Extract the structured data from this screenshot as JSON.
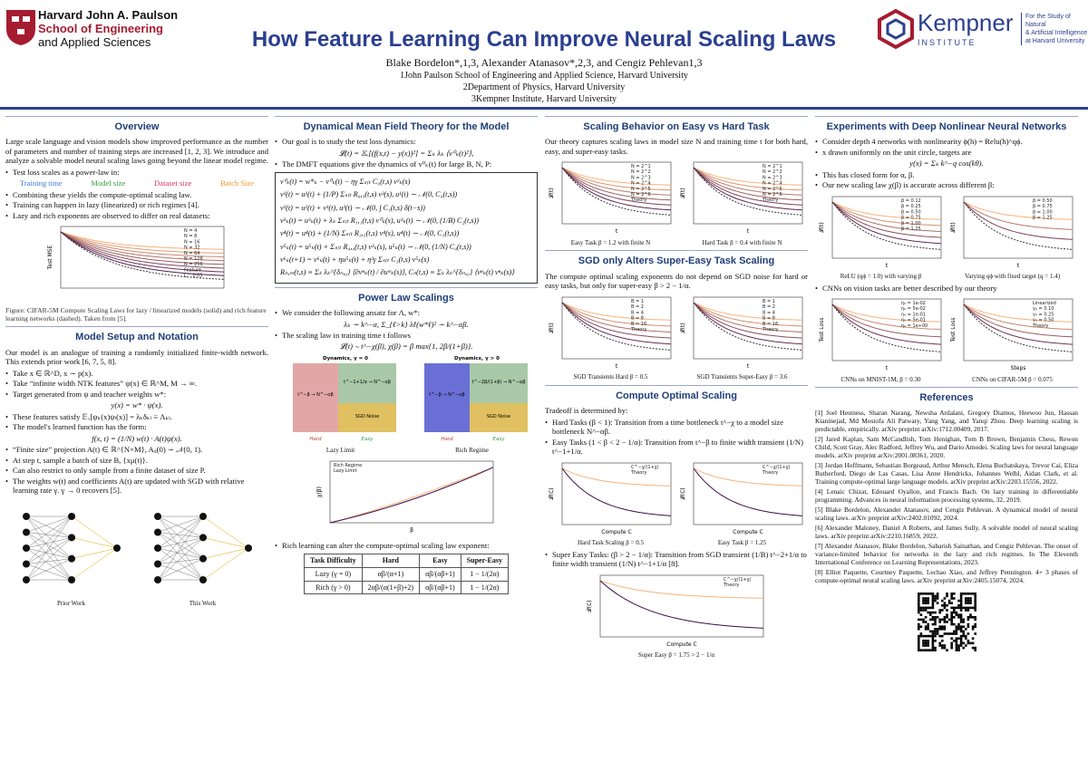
{
  "header": {
    "harvard": [
      "Harvard John A. Paulson",
      "School of Engineering",
      "and Applied Sciences"
    ],
    "kempner": {
      "name": "Kempner",
      "sub": "INSTITUTE",
      "tagline": [
        "For the Study of Natural",
        "& Artificial Intelligence",
        "at Harvard University"
      ]
    },
    "title": "How Feature Learning Can Improve Neural Scaling Laws",
    "authors": "Blake Bordelon*,1,3, Alexander Atanasov*,2,3, and Cengiz Pehlevan1,3",
    "affiliations": [
      "1John Paulson School of Engineering and Applied Science, Harvard University",
      "2Department of Physics, Harvard University",
      "3Kempner Institute, Harvard University"
    ]
  },
  "columns": [
    [
      {
        "title": "Overview",
        "body": [
          {
            "p": "Large scale language and vision models show improved performance as the number of parameters and number of training steps are increased [1, 2, 3]. We introduce and analyze a solvable model neural scaling laws going beyond the linear model regime."
          },
          {
            "li": "Test loss scales as a power-law in:"
          },
          {
            "terms": [
              {
                "text": "Training time",
                "color": "#3a7bd5"
              },
              {
                "text": "Model size",
                "color": "#2e9e3e"
              },
              {
                "text": "Dataset size",
                "color": "#d6336c"
              },
              {
                "text": "Batch Size",
                "color": "#f0932b"
              }
            ]
          },
          {
            "li": "Combining these yields the compute-optimal scaling law."
          },
          {
            "li": "Training can happen in lazy (linearized) or rich regimes [4]."
          },
          {
            "li": "Lazy and rich exponents are observed to differ on real datasets:"
          },
          {
            "fig": [
              {
                "legend": [
                  "N = 4",
                  "N = 8",
                  "N = 16",
                  "N = 32",
                  "N = 64",
                  "N = 128",
                  "N = 256",
                  "Feature",
                  "C^-0.05"
                ],
                "ylabel": "Test MSE",
                "xlabel": "",
                "caption": ""
              }
            ]
          },
          {
            "caption": "Figure: CIFAR-5M Compute Scaling Laws for lazy / linearized models (solid) and rich feature learning networks (dashed). Taken from [5]."
          }
        ]
      },
      {
        "title": "Model Setup and Notation",
        "body": [
          {
            "p": "Our model is an analogue of training a randomly initialized finite-width network. This extends prior work [6, 7, 5, 8]."
          },
          {
            "li": "Take x ∈ ℝ^D, x ∼ p(x)."
          },
          {
            "li": "Take “infinite width NTK features” ψ(x) ∈ ℝ^M, M → ∞."
          },
          {
            "li": "Target generated from ψ and teacher weights w*:"
          },
          {
            "eq": "y(x) = w* · ψ(x)."
          },
          {
            "li": "These features satisfy 𝔼ₓ[ψₖ(x)ψₗ(x)] = λₖδₖₗ ≡ Λₖₗ."
          },
          {
            "li": "The model's learned function has the form:"
          },
          {
            "eq": "f(x, t) = (1/N) w(t) · A(t)ψ(x)."
          },
          {
            "li": "“Finite size” projection A(t) ∈ ℝ^{N×M}, Aᵢⱼ(0) ∼ 𝒩(0, 1)."
          },
          {
            "li": "At step t, sample a batch of size B, {xμ(t)}."
          },
          {
            "li": "Can also restrict to only sample from a finite dataset of size P."
          },
          {
            "li": "The weights w(t) and coefficients A(t) are updated with SGD with relative learning rate γ. γ → 0 recovers [5]."
          },
          {
            "net": [
              "Prior Work",
              "This Work"
            ]
          }
        ]
      }
    ],
    [
      {
        "title": "Dynamical Mean Field Theory for the Model",
        "body": [
          {
            "li": "Our goal is to study the test loss dynamics:"
          },
          {
            "eq": "𝓛(t) = 𝔼ₓ[(f(x,t) − y(x))²] = Σₖ λₖ ⟨v⁰ₖ(t)²⟩,"
          },
          {
            "li": "The DMFT equations give the dynamics of v⁰ₖ(t) for large B, N, P:"
          },
          {
            "box": [
              "v⁰ₖ(t) = w*ₖ − v⁰ₖ(t) − ηγ Σₛ₍ₜ C₀(t,s) v²ₖ(s)",
              "v¹(t) = u¹(t) + (1/P) Σₛ₍ₜ R₀,₃(t,s) v³(s),  u¹(t) ∼ 𝒩(0, C₀(t,s))",
              "v²(t) = u²(t) + v¹(t),  u²(t) ∼ 𝒩(0, ∫ C₁(t,s) δ(t−s))",
              "v³ₖ(t) = u³ₖ(t) + λₖ Σₛ₍ₜ R₁,₁(t,s) v⁰ₖ(s),  u³ₖ(t) ∼ 𝒩(0, (1/B) C₂(t,s))",
              "v⁴(t) = u⁴(t) + (1/N) Σₛ₍ₜ R₃,₅(t,s) v⁴(s),  u⁴(t) ∼ 𝒩(0, C₃(t,s))",
              "v⁵ₖ(t) = u⁵ₖ(t) + Σₛ₍ₜ R₄,₄(t,s) v³ₖ(s),  u⁵ₖ(t) ∼ 𝒩(0, (1/N) C₄(t,s))",
              "v⁶ₖ(t+1) = v⁶ₖ(t) + ηu⁵ₖ(t) + η²γ Σₛ₍ₜ C₃(t,s) v⁵ₖ(s)",
              "Rₙ,ₘ(t,s) ≡ Σₖ λₖ^{δₙ,₀} ⟨∂vⁿₖ(t) / ∂uᵐₖ(s)⟩,  Cₙ(t,s) ≡ Σₖ λₖ^{δₙ,₀} ⟨vⁿₖ(t) vⁿₖ(s)⟩"
            ]
          }
        ]
      },
      {
        "title": "Power Law Scalings",
        "body": [
          {
            "li": "We consider the following ansatz for Λ, w*:"
          },
          {
            "eq": "λₖ ∼ k^−α,   Σ_{ℓ>k} λℓ(w*ℓ)² ∼ k^−αβ."
          },
          {
            "li": "The scaling law in training time t follows"
          },
          {
            "eq": "𝓛(t) ∼ t^−χ(β),  χ(β) = β max{1, 2β/(1+β)}."
          },
          {
            "phase": [
              {
                "title": "Dynamics, γ = 0",
                "caption": "Lazy Limit",
                "left": "t^−β → N^−αβ",
                "right": "t^−1+1/α → N^−αβ",
                "noise": "SGD Noise"
              },
              {
                "title": "Dynamics, γ > 0",
                "caption": "Rich Regime",
                "left": "t^−β → N^−αβ",
                "right": "t^−2β/(1+β) → N^−αβ",
                "noise": "SGD Noise"
              }
            ],
            "hard": "Hard",
            "easy": "Easy"
          },
          {
            "fig": [
              {
                "legend": [
                  "Rich Regime",
                  "Lazy Limit"
                ],
                "ylabel": "χ(β)",
                "xlabel": "β",
                "caption": "",
                "linear": true
              }
            ]
          },
          {
            "li": "Rich learning can alter the compute-optimal scaling law exponent:"
          },
          {
            "table": {
              "head": [
                "Task Difficulty",
                "Hard",
                "Easy",
                "Super-Easy"
              ],
              "rows": [
                [
                  "Lazy (γ = 0)",
                  "αβ/(α+1)",
                  "αβ/(αβ+1)",
                  "1 − 1/(2α)"
                ],
                [
                  "Rich (γ > 0)",
                  "2αβ/(α(1+β)+2)",
                  "αβ/(αβ+1)",
                  "1 − 1/(2α)"
                ]
              ]
            }
          }
        ]
      }
    ],
    [
      {
        "title": "Scaling Behavior on Easy vs Hard Task",
        "body": [
          {
            "p": "Our theory captures scaling laws in model size N and training time t for both hard, easy, and super-easy tasks."
          },
          {
            "fig": [
              {
                "legend": [
                  "N = 2^1",
                  "N = 2^2",
                  "N = 2^3",
                  "N = 2^4",
                  "N = 2^5",
                  "N = 2^6",
                  "Theory"
                ],
                "ylabel": "𝓛(t)",
                "xlabel": "t",
                "caption": "Easy Task β = 1.2 with finite N"
              },
              {
                "legend": [
                  "N = 2^1",
                  "N = 2^2",
                  "N = 2^3",
                  "N = 2^4",
                  "N = 2^5",
                  "N = 2^6",
                  "Theory"
                ],
                "ylabel": "𝓛(t)",
                "xlabel": "t",
                "caption": "Hard Task β = 0.4 with finite N"
              }
            ]
          }
        ]
      },
      {
        "title": "SGD only Alters Super-Easy Task Scaling",
        "body": [
          {
            "p": "The compute optimal scaling exponents do not depend on SGD noise for hard or easy tasks, but only for super-easy β > 2 − 1/α."
          },
          {
            "fig": [
              {
                "legend": [
                  "B = 1",
                  "B = 2",
                  "B = 4",
                  "B = 8",
                  "B = 16",
                  "Theory"
                ],
                "ylabel": "𝓛(t)",
                "xlabel": "t",
                "caption": "SGD Transients Hard β = 0.5"
              },
              {
                "legend": [
                  "B = 1",
                  "B = 2",
                  "B = 4",
                  "B = 8",
                  "B = 16",
                  "Theory"
                ],
                "ylabel": "𝓛(t)",
                "xlabel": "t",
                "caption": "SGD Transients Super-Easy β = 3.6"
              }
            ]
          }
        ]
      },
      {
        "title": "Compute Optimal Scaling",
        "body": [
          {
            "p": "Tradeoff is determined by:"
          },
          {
            "li": "Hard Tasks (β < 1): Transition from a time bottleneck t^−χ to a model size bottleneck N^−αβ."
          },
          {
            "li": "Easy Tasks (1 < β < 2 − 1/α): Transition from t^−β to finite width transient (1/N) t^−1+1/α."
          },
          {
            "fig": [
              {
                "legend": [
                  "C^−χ/(1+χ)",
                  "Theory"
                ],
                "ylabel": "𝓛(C)",
                "xlabel": "Compute C",
                "caption": "Hard Task Scaling β = 0.5"
              },
              {
                "legend": [
                  "C^−χ/(1+χ)",
                  "Theory"
                ],
                "ylabel": "𝓛(C)",
                "xlabel": "Compute C",
                "caption": "Easy Task β = 1.25"
              }
            ]
          },
          {
            "li": "Super Easy Tasks: (β > 2 − 1/α): Transition from SGD transient (1/B) t^−2+1/α to finite width transient (1/N) t^−1+1/α [8]."
          },
          {
            "fig": [
              {
                "legend": [
                  "C^−χ/(1+χ)",
                  "Theory"
                ],
                "ylabel": "𝓛(C)",
                "xlabel": "Compute C",
                "caption": "Super Easy β = 1.75 > 2 − 1/α"
              }
            ]
          }
        ]
      }
    ],
    [
      {
        "title": "Experiments with Deep Nonlinear Neural Networks",
        "body": [
          {
            "li": "Consider depth 4 networks with nonlinearity ϕ(h) = Relu(h)^qϕ."
          },
          {
            "li": "x drawn uniformly on the unit circle, targets are"
          },
          {
            "eq": "y(x) = Σₖ k^−q cos(kθ)."
          },
          {
            "li": "This has closed form for α, β."
          },
          {
            "li": "Our new scaling law χ(β) is accurate across different β:"
          },
          {
            "fig": [
              {
                "legend": [
                  "β = 0.12",
                  "β = 0.25",
                  "β = 0.50",
                  "β = 0.75",
                  "β = 1.00",
                  "β = 1.25"
                ],
                "ylabel": "𝓛(t)",
                "xlabel": "t",
                "caption": "ReLU (qϕ = 1.0) with varying β"
              },
              {
                "legend": [
                  "β = 0.50",
                  "β = 0.75",
                  "β = 1.00",
                  "β = 1.25"
                ],
                "ylabel": "𝓛(t)",
                "xlabel": "t",
                "caption": "Varying qϕ with fixed target (q = 1.4)"
              }
            ]
          },
          {
            "li": "CNNs on vision tasks are better described by our theory"
          },
          {
            "fig": [
              {
                "legend": [
                  "η₀ = 1e-02",
                  "η₀ = 5e-02",
                  "η₀ = 1e-01",
                  "η₀ = 5e-01",
                  "η₀ = 1e+00"
                ],
                "ylabel": "Test Loss",
                "xlabel": "t",
                "caption": "CNNs on MNIST-1M, β = 0.30"
              },
              {
                "legend": [
                  "Linearized",
                  "γ₀ = 0.10",
                  "γ₀ = 0.25",
                  "γ₀ = 0.50",
                  "Theory"
                ],
                "ylabel": "Test Loss",
                "xlabel": "Steps",
                "caption": "CNNs on CIFAR-5M β = 0.075"
              }
            ]
          }
        ]
      },
      {
        "title": "References",
        "body": [
          {
            "refs": [
              "[1] Joel Hestness, Sharan Narang, Newsha Ardalani, Gregory Diamos, Heewoo Jun, Hassan Kianinejad, Md Mostofa Ali Patwary, Yang Yang, and Yanqi Zhou. Deep learning scaling is predictable, empirically. arXiv preprint arXiv:1712.00409, 2017.",
              "[2] Jared Kaplan, Sam McCandlish, Tom Henighan, Tom B Brown, Benjamin Chess, Rewon Child, Scott Gray, Alec Radford, Jeffrey Wu, and Dario Amodei. Scaling laws for neural language models. arXiv preprint arXiv:2001.08361, 2020.",
              "[3] Jordan Hoffmann, Sebastian Borgeaud, Arthur Mensch, Elena Buchatskaya, Trevor Cai, Eliza Rutherford, Diego de Las Casas, Lisa Anne Hendricks, Johannes Welbl, Aidan Clark, et al. Training compute-optimal large language models. arXiv preprint arXiv:2203.15556, 2022.",
              "[4] Lenaic Chizat, Edouard Oyallon, and Francis Bach. On lazy training in differentiable programming. Advances in neural information processing systems, 32, 2019.",
              "[5] Blake Bordelon, Alexander Atanasov, and Cengiz Pehlevan. A dynamical model of neural scaling laws. arXiv preprint arXiv:2402.01092, 2024.",
              "[6] Alexander Maloney, Daniel A Roberts, and James Sully. A solvable model of neural scaling laws. arXiv preprint arXiv:2210.16859, 2022.",
              "[7] Alexander Atanasov, Blake Bordelon, Sabarish Sainathan, and Cengiz Pehlevan. The onset of variance-limited behavior for networks in the lazy and rich regimes. In The Eleventh International Conference on Learning Representations, 2023.",
              "[8] Elliot Paquette, Courtney Paquette, Lechao Xiao, and Jeffrey Pennington. 4+ 3 phases of compute-optimal neural scaling laws. arXiv preprint arXiv:2405.15074, 2024."
            ]
          },
          {
            "qr": true
          }
        ]
      }
    ]
  ]
}
